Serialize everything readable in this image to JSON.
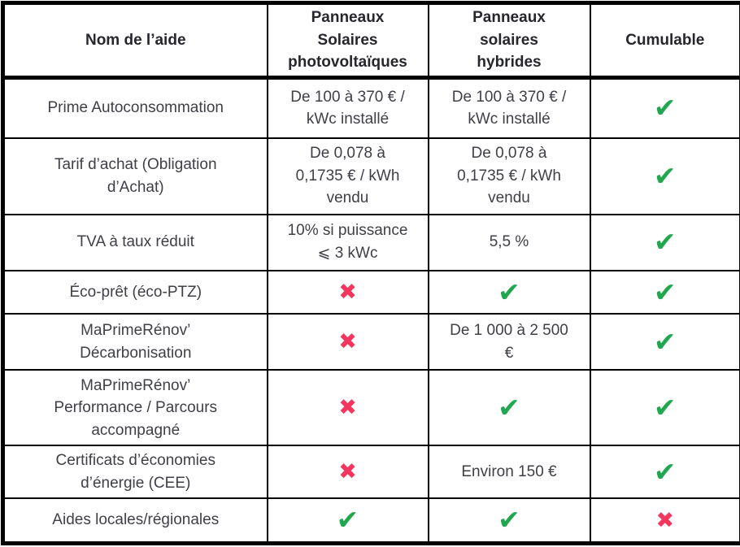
{
  "table": {
    "headers": [
      "Nom de l’aide",
      "Panneaux\nSolaires\nphotovoltaïques",
      "Panneaux\nsolaires\nhybrides",
      "Cumulable"
    ],
    "rows": [
      {
        "aid": "Prime Autoconsommation",
        "cells": [
          {
            "type": "text",
            "value": "De 100 à 370 € /\nkWc installé"
          },
          {
            "type": "text",
            "value": "De 100 à 370 € /\nkWc installé"
          },
          {
            "type": "check"
          }
        ]
      },
      {
        "aid": "Tarif d’achat (Obligation\nd’Achat)",
        "cells": [
          {
            "type": "text",
            "value": "De 0,078 à\n0,1735 € / kWh\nvendu"
          },
          {
            "type": "text",
            "value": "De 0,078 à\n0,1735 € / kWh\nvendu"
          },
          {
            "type": "check"
          }
        ]
      },
      {
        "aid": "TVA à taux réduit",
        "cells": [
          {
            "type": "text",
            "value": "10% si puissance\n⩽ 3 kWc"
          },
          {
            "type": "text",
            "value": "5,5 %"
          },
          {
            "type": "check"
          }
        ]
      },
      {
        "aid": "Éco-prêt (éco-PTZ)",
        "cells": [
          {
            "type": "cross"
          },
          {
            "type": "check"
          },
          {
            "type": "check"
          }
        ]
      },
      {
        "aid": "MaPrimeRénov’\nDécarbonisation",
        "cells": [
          {
            "type": "cross"
          },
          {
            "type": "text",
            "value": "De 1 000 à 2 500\n€"
          },
          {
            "type": "check"
          }
        ]
      },
      {
        "aid": "MaPrimeRénov’\nPerformance / Parcours\naccompagné",
        "cells": [
          {
            "type": "cross"
          },
          {
            "type": "check"
          },
          {
            "type": "check"
          }
        ]
      },
      {
        "aid": "Certificats d’économies\nd’énergie (CEE)",
        "cells": [
          {
            "type": "cross"
          },
          {
            "type": "text",
            "value": "Environ 150 €"
          },
          {
            "type": "check"
          }
        ]
      },
      {
        "aid": "Aides locales/régionales",
        "cells": [
          {
            "type": "check"
          },
          {
            "type": "check"
          },
          {
            "type": "cross"
          }
        ]
      }
    ]
  },
  "icons": {
    "check": "✔",
    "cross": "✖"
  },
  "colors": {
    "check": "#21A750",
    "cross": "#F4365E",
    "text": "#3F3F47",
    "border": "#000000"
  }
}
